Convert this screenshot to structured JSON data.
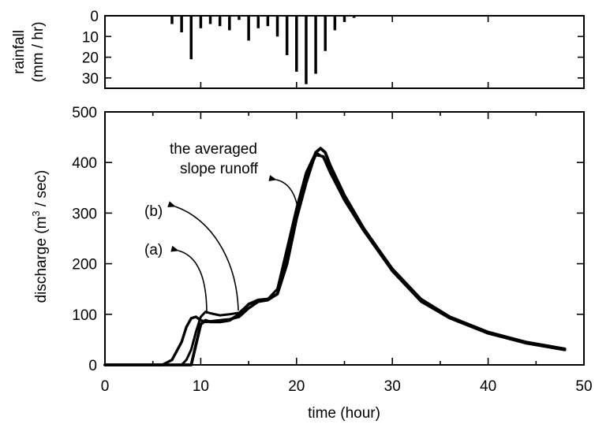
{
  "chart_data": [
    {
      "type": "bar",
      "ylabel": "rainfall (mm / hr)",
      "ylabel_line1": "rainfall",
      "ylabel_line2": "(mm / hr)",
      "y_inverted": true,
      "xlim": [
        0,
        50
      ],
      "ylim": [
        0,
        35
      ],
      "yticks": [
        0,
        10,
        20,
        30
      ],
      "x": [
        7,
        8,
        9,
        10,
        11,
        12,
        13,
        14,
        15,
        16,
        17,
        18,
        19,
        20,
        21,
        22,
        23,
        24,
        25,
        26
      ],
      "values": [
        4,
        8,
        21,
        6,
        4,
        5,
        7,
        2,
        12,
        6,
        5,
        10,
        19,
        27,
        33,
        28,
        17,
        7,
        3,
        1
      ]
    },
    {
      "type": "line",
      "xlabel": "time (hour)",
      "ylabel_pre": "discharge  (m",
      "ylabel_sup": "3",
      "ylabel_post": " / sec)",
      "xlim": [
        0,
        50
      ],
      "ylim": [
        0,
        500
      ],
      "xticks": [
        0,
        10,
        20,
        30,
        40,
        50
      ],
      "yticks": [
        0,
        100,
        200,
        300,
        400,
        500
      ],
      "series": [
        {
          "name": "(a)",
          "x": [
            0,
            6,
            7,
            8,
            8.5,
            9,
            9.5,
            10,
            10.5,
            11,
            12,
            13,
            14,
            15,
            16,
            17,
            18,
            19,
            20,
            21,
            22,
            22.8,
            23.5,
            25,
            27,
            30,
            33,
            36,
            40,
            44,
            48
          ],
          "y": [
            0,
            0,
            10,
            45,
            75,
            92,
            95,
            88,
            85,
            86,
            88,
            90,
            95,
            112,
            125,
            128,
            140,
            210,
            300,
            370,
            415,
            412,
            385,
            330,
            270,
            190,
            130,
            95,
            65,
            45,
            32
          ]
        },
        {
          "name": "(b)",
          "x": [
            0,
            8,
            8.5,
            9,
            9.5,
            10,
            10.5,
            11,
            12,
            13,
            14,
            15,
            16,
            17,
            18,
            19,
            20,
            21,
            22,
            22.8,
            23.5,
            25,
            27,
            30,
            33,
            36,
            40,
            44,
            48
          ],
          "y": [
            0,
            0,
            10,
            30,
            65,
            95,
            105,
            102,
            98,
            100,
            103,
            120,
            128,
            130,
            150,
            230,
            310,
            380,
            420,
            410,
            380,
            325,
            265,
            185,
            125,
            92,
            62,
            43,
            30
          ]
        },
        {
          "name": "the averaged slope runoff",
          "x": [
            0,
            9,
            9.5,
            10,
            10.5,
            11,
            12,
            13,
            14,
            15,
            16,
            17,
            18,
            19,
            20,
            21,
            22,
            22.5,
            23,
            23.5,
            25,
            27,
            30,
            33,
            36,
            40,
            44,
            48
          ],
          "y": [
            0,
            0,
            40,
            80,
            88,
            85,
            85,
            88,
            100,
            120,
            128,
            130,
            140,
            200,
            290,
            360,
            420,
            428,
            420,
            395,
            335,
            270,
            188,
            128,
            93,
            63,
            43,
            30
          ]
        }
      ],
      "annotations": {
        "a": "(a)",
        "b": "(b)",
        "avg_line1": "the averaged",
        "avg_line2": "slope runoff"
      }
    }
  ]
}
